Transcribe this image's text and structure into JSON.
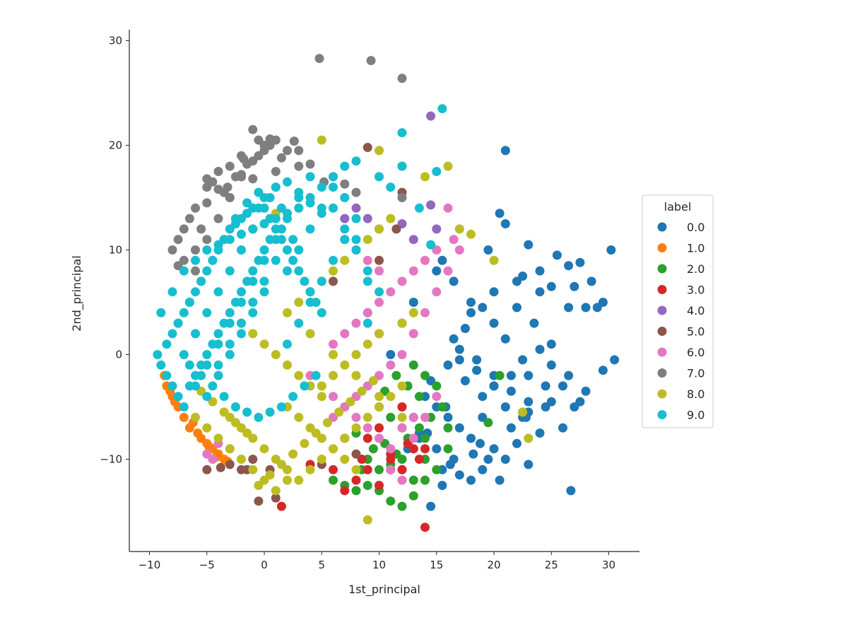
{
  "chart_data": {
    "type": "scatter",
    "title": "",
    "xlabel": "1st_principal",
    "ylabel": "2nd_principal",
    "xlim": [
      -11.5,
      32.5
    ],
    "ylim": [
      -19,
      31
    ],
    "xticks": [
      -10,
      -5,
      0,
      5,
      10,
      15,
      20,
      25,
      30
    ],
    "xtick_labels": [
      "−10",
      "−5",
      "0",
      "5",
      "10",
      "15",
      "20",
      "25",
      "30"
    ],
    "yticks": [
      -10,
      0,
      10,
      20,
      30
    ],
    "ytick_labels": [
      "−10",
      "0",
      "10",
      "20",
      "30"
    ],
    "grid": false,
    "legend": {
      "title": "label",
      "placement": "right",
      "labels": [
        "0.0",
        "1.0",
        "2.0",
        "3.0",
        "4.0",
        "5.0",
        "6.0",
        "7.0",
        "8.0",
        "9.0"
      ],
      "colors": [
        "#1f77b4",
        "#ff7f0e",
        "#2ca02c",
        "#d62728",
        "#9467bd",
        "#8c564b",
        "#e377c2",
        "#7f7f7f",
        "#bcbd22",
        "#17becf"
      ]
    },
    "series": [
      {
        "name": "0.0",
        "color": "#1f77b4",
        "x": [
          21,
          20.5,
          21,
          19.5,
          23,
          25.5,
          26.5,
          27.5,
          28.5,
          29.5,
          30.5,
          30.2,
          27,
          26.5,
          28,
          29,
          25,
          24,
          22.5,
          23.5,
          22,
          20,
          19,
          18,
          17.5,
          16.5,
          17,
          18.5,
          20,
          21.5,
          22.5,
          24,
          25,
          26.5,
          28,
          29.5,
          24.5,
          23,
          21,
          19,
          17,
          16,
          15,
          14,
          13,
          12.5,
          18,
          20,
          22,
          24,
          26,
          27.5,
          15.5,
          14.5,
          21,
          23,
          19,
          17,
          15.5,
          18,
          20.5,
          22.5,
          24.5,
          26,
          25,
          23,
          21.5,
          20,
          18.5,
          17,
          16,
          14.5,
          13.5,
          15,
          16.5,
          19.5,
          21.5,
          26.7,
          24,
          22,
          20,
          18,
          16.5,
          15,
          13,
          12,
          11,
          21,
          23,
          25,
          27,
          17.5,
          19,
          15.5,
          13.5,
          15.8,
          18.8,
          22.8,
          20,
          16.2,
          14.2,
          18.2
        ],
        "y": [
          19.5,
          13.5,
          12.5,
          10,
          10.5,
          9.5,
          8.5,
          8.8,
          7,
          5,
          -0.5,
          10,
          6.5,
          4.5,
          4.5,
          4.5,
          6.5,
          6,
          7.5,
          3,
          4.5,
          3,
          4.5,
          4,
          2.5,
          1.5,
          -0.5,
          -1.5,
          -3,
          -2,
          -0.5,
          0.5,
          1,
          -2,
          -3.5,
          -1.5,
          -3,
          -4.5,
          -5,
          -6,
          -7,
          -6,
          -5,
          -4,
          -6,
          -9,
          -8,
          -9,
          -8.5,
          -7.5,
          -7,
          -4.5,
          -11,
          -14.5,
          -10,
          -10.5,
          -11,
          -11.5,
          -12.5,
          -12,
          -12,
          -6,
          -5,
          -3,
          -4.5,
          -5.5,
          -3.5,
          -2,
          -0.5,
          0.5,
          -1,
          -2.5,
          -8,
          -9,
          -10,
          -10,
          -7,
          -13,
          8,
          7,
          6,
          5,
          7,
          8,
          5,
          3,
          0,
          1.5,
          -2,
          -1,
          -5,
          -2.5,
          -4,
          9,
          -7.5,
          -5,
          -8.5,
          -6,
          -3,
          -10.5,
          -7.5,
          -9.5
        ]
      },
      {
        "name": "1.0",
        "color": "#ff7f0e",
        "x": [
          -8.5,
          -8,
          -7.5,
          -7,
          -6.5,
          -5.5,
          -5,
          -4.5,
          -4,
          -3.5,
          -8.7,
          -8.2,
          -7.8,
          -6.2,
          -5.8,
          -4.8,
          -4.2,
          -3.2
        ],
        "y": [
          -3,
          -4,
          -5,
          -6,
          -7,
          -8,
          -8.5,
          -9,
          -9.5,
          -10,
          -2,
          -3.5,
          -4.5,
          -6.5,
          -7.5,
          -8.8,
          -9.8,
          -10.2
        ]
      },
      {
        "name": "2.0",
        "color": "#2ca02c",
        "x": [
          6,
          7,
          8,
          9,
          10,
          11,
          12,
          13,
          14,
          15,
          11,
          12,
          13,
          14,
          9.5,
          10.5,
          11.5,
          12.5,
          13.5,
          14.5,
          15.5,
          16,
          8.5,
          9,
          10,
          11,
          12,
          13,
          14,
          12.5,
          13.5,
          11.5,
          12,
          19.5,
          20.5,
          22.5,
          15,
          14,
          13,
          10,
          11,
          8,
          7,
          16,
          12,
          10.5
        ],
        "y": [
          -12,
          -12.5,
          -13,
          -12.5,
          -13,
          -14,
          -14.5,
          -13.5,
          -12,
          -11,
          -11,
          -10,
          -9,
          -8,
          -9,
          -8.5,
          -9.5,
          -8,
          -7,
          -6,
          -5,
          -9,
          -11,
          -10,
          -11,
          -10.5,
          -11,
          -12,
          -10,
          -3,
          -4,
          -2,
          -5,
          -6.5,
          -2,
          -5.5,
          -3,
          -2,
          -1,
          -5,
          -6,
          -7.5,
          -8,
          -7,
          -7,
          -3.5
        ]
      },
      {
        "name": "3.0",
        "color": "#d62728",
        "x": [
          1.5,
          4,
          7,
          8,
          9,
          10,
          11,
          12,
          13,
          14,
          14,
          9,
          10,
          8.5,
          11,
          12.5,
          13.5,
          -2,
          6,
          10,
          12
        ],
        "y": [
          -14.5,
          -10.5,
          -13,
          -12,
          -11,
          -12.5,
          -10,
          -11,
          -9,
          -9,
          -16.5,
          -8,
          -7,
          -10,
          -9.5,
          -8.5,
          -10,
          17,
          -11,
          2,
          -5
        ]
      },
      {
        "name": "4.0",
        "color": "#9467bd",
        "x": [
          14.5,
          14.5,
          13,
          10,
          9,
          8,
          7,
          12,
          15
        ],
        "y": [
          22.8,
          14.3,
          11,
          12,
          13,
          14,
          13,
          12.5,
          12
        ]
      },
      {
        "name": "5.0",
        "color": "#8c564b",
        "x": [
          -0.5,
          1,
          9,
          12,
          12,
          11.5,
          -3,
          -1.5,
          0.5,
          5,
          8,
          7,
          10,
          6,
          9,
          4,
          -5,
          -2,
          -1,
          -3.8
        ],
        "y": [
          -14,
          -13.7,
          19.8,
          18,
          15.5,
          12,
          -10.5,
          -11,
          -11,
          -10.5,
          -9.5,
          11,
          9,
          7,
          4,
          6,
          -11,
          -11,
          -10,
          -10.8
        ]
      },
      {
        "name": "6.0",
        "color": "#e377c2",
        "x": [
          16,
          16.5,
          15,
          14,
          13,
          12,
          11,
          10,
          9,
          8,
          7,
          6,
          17,
          16,
          15,
          14,
          13,
          12,
          11,
          10,
          9,
          8,
          7,
          6,
          12,
          13,
          14,
          15,
          11,
          10,
          9,
          8,
          7,
          6,
          5,
          4,
          8,
          9,
          10,
          11,
          12,
          13,
          -5,
          -4.5,
          -4,
          -3
        ],
        "y": [
          14,
          11,
          10,
          9,
          8,
          7,
          6,
          5,
          4,
          3,
          2,
          1,
          10,
          8,
          6,
          4,
          2,
          0,
          -1,
          -2,
          -3,
          -4,
          -5,
          -6,
          -7,
          -8,
          -6,
          -4,
          -9,
          -8,
          -7,
          -6,
          -5,
          -4,
          -3,
          -2,
          10,
          9,
          8,
          -11,
          -12,
          -6,
          -9.5,
          -10,
          -8.5,
          -9
        ]
      },
      {
        "name": "7.0",
        "color": "#7f7f7f",
        "x": [
          4.8,
          9.3,
          12,
          -1,
          -0.5,
          0.5,
          -2,
          -3,
          -4,
          -5,
          -6,
          -7,
          -7.5,
          -8,
          -7,
          -6,
          -5,
          -4,
          -3,
          -2,
          -1,
          0,
          1,
          2,
          3,
          -4.5,
          -3.5,
          -2.5,
          -1.5,
          -0.5,
          0.5,
          1.5,
          -6.5,
          -5.5,
          -7.5,
          -6,
          -5,
          -3,
          -2,
          0,
          1,
          -1,
          3,
          4,
          6,
          7,
          8,
          12,
          -4,
          -5,
          -3.2,
          -1.8,
          2.6,
          5.2
        ],
        "y": [
          28.3,
          28.1,
          26.4,
          21.5,
          20.5,
          20,
          19,
          18,
          17.5,
          16,
          14,
          12,
          11,
          10,
          9,
          8,
          11,
          13,
          15,
          17,
          18.5,
          20,
          20.5,
          19.5,
          18,
          16.5,
          15.5,
          17,
          18.2,
          19,
          20.6,
          18.8,
          13,
          12,
          8.5,
          10,
          14.5,
          15,
          17.2,
          19.5,
          17.5,
          16.8,
          19.5,
          18.2,
          17,
          16.3,
          15.5,
          15,
          15.8,
          16.8,
          16,
          18.7,
          20.4,
          16.5
        ]
      },
      {
        "name": "8.0",
        "color": "#bcbd22",
        "x": [
          9,
          2,
          1,
          0,
          -1,
          -2,
          -3,
          -4,
          -5,
          -6,
          -3,
          -2,
          -1,
          0,
          1,
          2,
          3,
          4,
          5,
          6,
          7,
          8,
          9,
          10,
          11,
          12,
          5,
          4,
          3,
          2,
          1,
          0,
          -1,
          -2,
          3,
          4,
          5,
          6,
          7,
          8,
          9,
          10,
          11,
          2,
          3,
          4,
          5,
          6,
          7,
          8,
          5,
          6,
          7,
          8,
          9,
          10,
          12,
          13,
          17,
          20,
          22.5,
          23,
          5,
          10,
          14,
          16,
          18,
          -0.5,
          0.5,
          1.5,
          2.5,
          3.5,
          4.5,
          5.5,
          6.5,
          7.5,
          8.5,
          9.5,
          -1.5,
          -2.5,
          -3.5,
          -4.5,
          -5.5,
          2,
          4,
          6,
          8,
          10,
          12,
          3,
          1,
          -1
        ],
        "y": [
          -15.8,
          -12,
          -13,
          -12,
          -11,
          -10,
          -9,
          -8,
          -7,
          -6,
          -6,
          -7,
          -8,
          -9,
          -10,
          -11,
          -12,
          -11,
          -10,
          -9,
          -8,
          -7,
          -6,
          -5,
          -4,
          -3,
          -4,
          -3,
          -2,
          -1,
          0,
          1,
          2,
          3,
          5,
          6,
          7,
          8,
          9,
          10,
          11,
          12,
          13,
          -5,
          -6,
          -7,
          -8,
          -9,
          -10,
          -11,
          -3,
          -2,
          -1,
          0,
          1,
          2,
          3,
          4,
          12,
          9,
          -5.5,
          -8,
          20.5,
          19.5,
          17,
          18,
          11.5,
          -12.5,
          -11.5,
          -10.5,
          -9.5,
          -8.5,
          -7.5,
          -6.5,
          -5.5,
          -4.5,
          -3.5,
          -2.5,
          -7.5,
          -6.5,
          -5.5,
          -4.5,
          -3.5,
          4,
          2,
          0,
          -2,
          -4,
          -6,
          14,
          13.5,
          12
        ]
      },
      {
        "name": "9.0",
        "color": "#17becf",
        "x": [
          15.5,
          12,
          15,
          13.5,
          14.5,
          10,
          11,
          12,
          8,
          7,
          6,
          5,
          4,
          3,
          2,
          1,
          0,
          -1,
          -2,
          -3,
          -4,
          -5,
          -6,
          -7,
          -8,
          -9,
          -9.3,
          -9,
          -8.5,
          -8,
          -7.5,
          -7,
          -6.5,
          -6,
          -5.5,
          -5,
          -4.5,
          -4,
          -3.5,
          -3,
          -2.5,
          -2,
          -1.5,
          -1,
          -0.5,
          0,
          0.5,
          1,
          1.5,
          2,
          2.5,
          3,
          3.5,
          4,
          4.5,
          5,
          -8,
          -7,
          -6,
          -5,
          -4,
          -3,
          -2,
          -1,
          0,
          1,
          2,
          3,
          4,
          5,
          -6.5,
          -5.5,
          -4.5,
          -3.5,
          -2.5,
          -1.5,
          -0.5,
          0.5,
          1.5,
          2.5,
          3.5,
          4.5,
          -7.5,
          -6.5,
          -5.5,
          -4.5,
          -3.5,
          -2.5,
          -1.5,
          -0.5,
          0.5,
          1.5,
          2.5,
          -8.5,
          -7.5,
          -6.5,
          -5.5,
          -4.5,
          -3.5,
          -2.5,
          -1.5,
          -0.5,
          0.5,
          1.5,
          -7,
          -6,
          -5,
          -4,
          -3,
          -2,
          -1,
          0,
          1,
          -6,
          -5,
          -4,
          -3,
          -2,
          -1,
          0,
          1,
          2,
          3,
          4,
          6,
          7,
          8,
          9,
          10,
          -5,
          -4,
          -3,
          -2,
          -1,
          0,
          2,
          3,
          4,
          5,
          6,
          7,
          8,
          9,
          -4,
          -3,
          -2,
          -1,
          0,
          1,
          2,
          3,
          4,
          5,
          6,
          7,
          8,
          9
        ],
        "y": [
          23.5,
          21.2,
          17.5,
          14,
          10.5,
          17,
          16,
          18,
          18.5,
          18,
          17,
          16,
          15,
          14,
          13.5,
          13,
          12.5,
          12,
          11.5,
          11,
          10.5,
          10,
          9,
          8,
          6,
          4,
          0,
          -1,
          -2,
          -3,
          -4,
          -5,
          -3,
          -2,
          -1,
          0,
          1,
          2,
          3,
          4,
          5,
          6,
          7,
          8,
          9,
          10,
          11,
          12,
          11,
          10,
          9,
          8,
          7,
          6,
          5,
          4,
          2,
          4,
          6,
          8,
          10,
          12,
          13,
          14,
          15,
          16,
          16.5,
          15.5,
          14.5,
          13.5,
          -1,
          -2,
          -3,
          -4,
          -5,
          -5.5,
          -6,
          -5.5,
          -5,
          -4,
          -3,
          -2,
          3,
          5,
          7,
          9,
          11,
          12.5,
          13.5,
          14,
          13,
          12,
          11,
          1,
          3,
          5,
          7,
          9,
          11,
          13,
          14.5,
          15.5,
          15,
          14,
          0,
          2,
          4,
          6,
          8,
          10,
          12,
          14,
          16,
          -3,
          -1,
          1,
          3,
          5,
          7,
          9,
          11,
          13,
          15,
          17,
          14,
          12,
          10,
          8,
          6,
          -4,
          -2,
          0,
          2,
          4,
          6,
          8,
          10,
          12,
          14,
          16,
          15,
          11,
          7,
          -1,
          1,
          3,
          5,
          7,
          9,
          1,
          3,
          5,
          7,
          9,
          11,
          13,
          3
        ]
      }
    ]
  }
}
